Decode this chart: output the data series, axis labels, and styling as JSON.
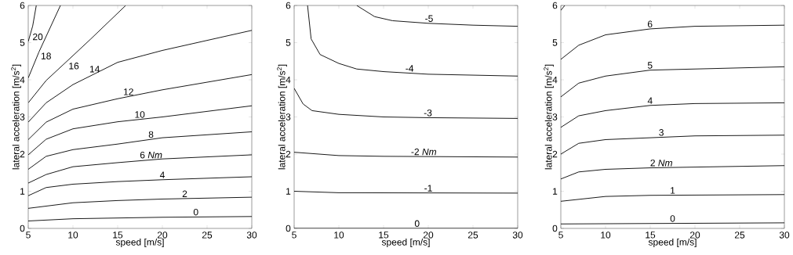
{
  "chart_data": [
    {
      "type": "line",
      "xlabel": "speed [m/s]",
      "ylabel": "lateral acceleration [m/s$^{2}$]",
      "xlim": [
        5,
        30
      ],
      "ylim": [
        0,
        6
      ],
      "xticks": [
        5,
        10,
        15,
        20,
        25,
        30
      ],
      "yticks": [
        0,
        1,
        2,
        3,
        4,
        5,
        6
      ],
      "series": [
        {
          "name": "0",
          "color": "#000000",
          "x": [
            5,
            10,
            20,
            30
          ],
          "values": [
            0.2,
            0.26,
            0.3,
            0.32
          ]
        },
        {
          "name": "2",
          "color": "#000000",
          "x": [
            5,
            10,
            15,
            20,
            30
          ],
          "values": [
            0.54,
            0.69,
            0.75,
            0.79,
            0.84
          ]
        },
        {
          "name": "4",
          "color": "#000000",
          "x": [
            5,
            7,
            10,
            15,
            20,
            30
          ],
          "values": [
            0.88,
            1.1,
            1.19,
            1.26,
            1.31,
            1.39
          ]
        },
        {
          "name": "6 *Nm*",
          "color": "#000000",
          "x": [
            5,
            7,
            10,
            15,
            20,
            30
          ],
          "values": [
            1.22,
            1.45,
            1.66,
            1.77,
            1.87,
            1.98
          ]
        },
        {
          "name": "8",
          "color": "#000000",
          "x": [
            5,
            7,
            10,
            15,
            20,
            30
          ],
          "values": [
            1.59,
            1.94,
            2.12,
            2.27,
            2.44,
            2.6
          ]
        },
        {
          "name": "10",
          "color": "#000000",
          "x": [
            5,
            7,
            10,
            15,
            20,
            30
          ],
          "values": [
            1.98,
            2.4,
            2.68,
            2.87,
            3.0,
            3.3
          ]
        },
        {
          "name": "12",
          "color": "#000000",
          "x": [
            5,
            7,
            10,
            15,
            20,
            30
          ],
          "values": [
            2.39,
            2.86,
            3.21,
            3.49,
            3.73,
            4.14
          ]
        },
        {
          "name": "14",
          "color": "#000000",
          "x": [
            5,
            7,
            10,
            15,
            20,
            30
          ],
          "values": [
            2.86,
            3.38,
            3.87,
            4.47,
            4.79,
            5.33
          ]
        },
        {
          "name": "16",
          "color": "#000000",
          "x": [
            5,
            7,
            10,
            12,
            15.9
          ],
          "values": [
            3.38,
            3.98,
            4.65,
            5.1,
            6
          ]
        },
        {
          "name": "18",
          "color": "#000000",
          "x": [
            5,
            6.2,
            8.6
          ],
          "values": [
            4.05,
            4.75,
            6
          ]
        },
        {
          "name": "20",
          "color": "#000000",
          "x": [
            5,
            5.5,
            5.9
          ],
          "values": [
            5.03,
            5.45,
            6
          ]
        }
      ]
    },
    {
      "type": "line",
      "xlabel": "speed [m/s]",
      "ylabel": "lateral acceleration [m/s$^{2}$]",
      "xlim": [
        5,
        30
      ],
      "ylim": [
        0,
        6
      ],
      "xticks": [
        5,
        10,
        15,
        20,
        25,
        30
      ],
      "yticks": [
        0,
        1,
        2,
        3,
        4,
        5,
        6
      ],
      "series": [
        {
          "name": "0",
          "color": "#000000",
          "x": [
            5,
            30
          ],
          "values": [
            0,
            0
          ]
        },
        {
          "name": "-1",
          "color": "#000000",
          "x": [
            5,
            10,
            30
          ],
          "values": [
            1.0,
            0.96,
            0.95
          ]
        },
        {
          "name": "-2 *Nm*",
          "color": "#000000",
          "x": [
            5,
            10,
            15,
            30
          ],
          "values": [
            2.05,
            1.96,
            1.94,
            1.92
          ]
        },
        {
          "name": "-3",
          "color": "#000000",
          "x": [
            5,
            6,
            7,
            10,
            15,
            20,
            30
          ],
          "values": [
            3.77,
            3.35,
            3.17,
            3.07,
            3.0,
            2.98,
            2.96
          ]
        },
        {
          "name": "-4",
          "color": "#000000",
          "x": [
            6.5,
            6.9,
            7.9,
            10,
            12,
            15,
            20,
            30
          ],
          "values": [
            6,
            5.1,
            4.68,
            4.44,
            4.29,
            4.22,
            4.15,
            4.1
          ]
        },
        {
          "name": "-5",
          "color": "#000000",
          "x": [
            12,
            14,
            16,
            20,
            25,
            30
          ],
          "values": [
            6,
            5.7,
            5.59,
            5.52,
            5.47,
            5.44
          ]
        }
      ]
    },
    {
      "type": "line",
      "xlabel": "speed [m/s]",
      "ylabel": "lateral acceleration [m/s$^{2}$]",
      "xlim": [
        5,
        30
      ],
      "ylim": [
        0,
        6
      ],
      "xticks": [
        5,
        10,
        15,
        20,
        25,
        30
      ],
      "yticks": [
        0,
        1,
        2,
        3,
        4,
        5,
        6
      ],
      "series": [
        {
          "name": "0",
          "color": "#000000",
          "x": [
            5,
            30
          ],
          "values": [
            0.12,
            0.15
          ]
        },
        {
          "name": "1",
          "color": "#000000",
          "x": [
            5,
            10,
            15,
            30
          ],
          "values": [
            0.73,
            0.86,
            0.89,
            0.91
          ]
        },
        {
          "name": "2 *Nm*",
          "color": "#000000",
          "x": [
            5,
            7,
            10,
            15,
            30
          ],
          "values": [
            1.33,
            1.52,
            1.59,
            1.63,
            1.69
          ]
        },
        {
          "name": "3",
          "color": "#000000",
          "x": [
            5,
            7,
            10,
            15,
            20,
            30
          ],
          "values": [
            2.0,
            2.29,
            2.39,
            2.44,
            2.49,
            2.51
          ]
        },
        {
          "name": "4",
          "color": "#000000",
          "x": [
            5,
            7,
            10,
            15,
            20,
            30
          ],
          "values": [
            2.72,
            3.03,
            3.17,
            3.31,
            3.36,
            3.38
          ]
        },
        {
          "name": "5",
          "color": "#000000",
          "x": [
            5,
            7,
            10,
            15,
            20,
            30
          ],
          "values": [
            3.54,
            3.91,
            4.1,
            4.26,
            4.29,
            4.35
          ]
        },
        {
          "name": "6",
          "color": "#000000",
          "x": [
            5,
            7,
            10,
            15,
            20,
            30
          ],
          "values": [
            4.55,
            4.93,
            5.21,
            5.37,
            5.44,
            5.47
          ]
        },
        {
          "color": "#000000",
          "x": [
            5,
            5.44
          ],
          "values": [
            5.87,
            6
          ]
        }
      ]
    }
  ]
}
